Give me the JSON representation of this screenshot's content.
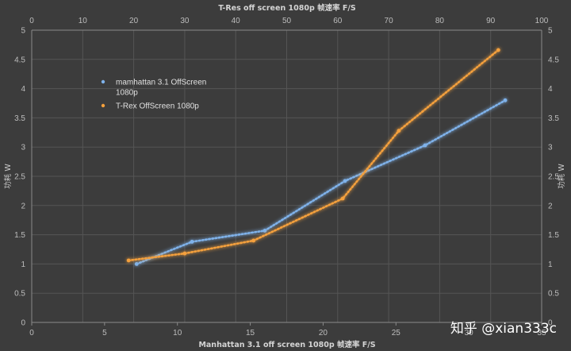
{
  "chart_data": {
    "type": "scatter",
    "top_axis": {
      "title": "T-Res off screen 1080p 帧速率 F/S",
      "range": [
        0,
        100
      ],
      "ticks": [
        0,
        10,
        20,
        30,
        40,
        50,
        60,
        70,
        80,
        90,
        100
      ]
    },
    "bottom_axis": {
      "title": "Manhattan 3.1 off screen 1080p 帧速率 F/S",
      "range": [
        0,
        35
      ],
      "ticks": [
        0,
        5,
        10,
        15,
        20,
        25,
        30,
        35
      ]
    },
    "left_axis": {
      "title": "功耗 W",
      "range": [
        0,
        5
      ],
      "ticks": [
        0,
        0.5,
        1,
        1.5,
        2,
        2.5,
        3,
        3.5,
        4,
        4.5,
        5
      ]
    },
    "right_axis": {
      "title": "功耗 W",
      "range": [
        0,
        5
      ],
      "ticks": [
        0,
        0.5,
        1,
        1.5,
        2,
        2.5,
        3,
        3.5,
        4,
        4.5,
        5
      ]
    },
    "series": [
      {
        "name": "mamhattan 3.1 OffScreen 1080p",
        "name_lines": [
          "mamhattan 3.1 OffScreen",
          "1080p"
        ],
        "axis": "bottom",
        "color": "#7fb2ea",
        "x": [
          7.2,
          11,
          16,
          21.5,
          27,
          32.5
        ],
        "y": [
          1.0,
          1.38,
          1.57,
          2.42,
          3.03,
          3.8
        ]
      },
      {
        "name": "T-Rex OffScreen 1080p",
        "axis": "top",
        "color": "#f4a03c",
        "x": [
          19,
          30,
          43.5,
          61,
          72,
          91.5
        ],
        "y": [
          1.06,
          1.18,
          1.4,
          2.12,
          3.28,
          4.66
        ]
      }
    ],
    "grid": true,
    "legend_position": "top-left"
  },
  "watermark": "知乎 @xian333c"
}
